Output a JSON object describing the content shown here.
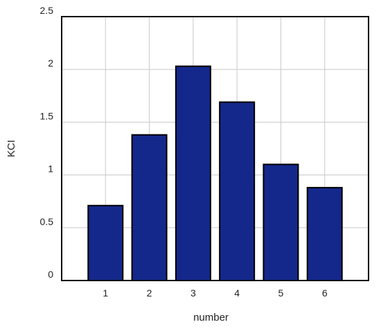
{
  "chart_data": {
    "type": "bar",
    "title": "",
    "xlabel": "number",
    "ylabel": "KCI",
    "categories": [
      "1",
      "2",
      "3",
      "4",
      "5",
      "6"
    ],
    "values": [
      0.71,
      1.38,
      2.03,
      1.69,
      1.1,
      0.88
    ],
    "xlim": [
      -0.5,
      6.5
    ],
    "ylim": [
      0,
      2.5
    ],
    "yticks": [
      "0",
      "0.5",
      "1",
      "1.5",
      "2",
      "2.5"
    ],
    "grid": true,
    "legend": "none",
    "colors": {
      "bar_fill": "#14288c",
      "bar_stroke": "#000000",
      "grid": "#c8c8c8",
      "frame": "#000000"
    }
  }
}
